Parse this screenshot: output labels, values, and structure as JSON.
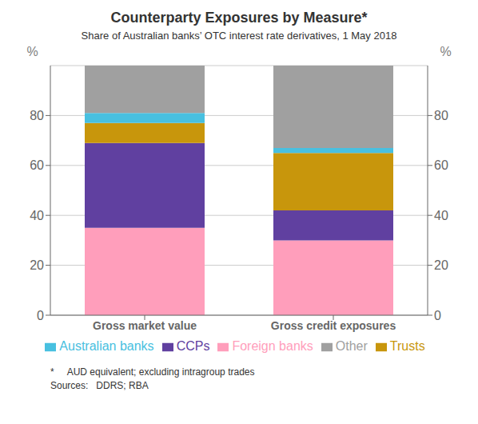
{
  "chart_data": {
    "type": "bar",
    "title": "Counterparty Exposures by Measure*",
    "subtitle": "Share of Australian banks’ OTC interest rate derivatives, 1 May 2018",
    "categories": [
      "Gross market value",
      "Gross credit exposures"
    ],
    "series": [
      {
        "name": "Foreign banks",
        "color": "#FF9EBB",
        "values": [
          35,
          30
        ]
      },
      {
        "name": "CCPs",
        "color": "#6040A0",
        "values": [
          34,
          12
        ]
      },
      {
        "name": "Trusts",
        "color": "#C8960C",
        "values": [
          8,
          23
        ]
      },
      {
        "name": "Australian banks",
        "color": "#48C0E0",
        "values": [
          4,
          2
        ]
      },
      {
        "name": "Other",
        "color": "#A0A0A0",
        "values": [
          19,
          33
        ]
      }
    ],
    "stacked": true,
    "ylabel": "%",
    "y2label": "%",
    "ylim": [
      0,
      100
    ],
    "yticks": [
      0,
      20,
      40,
      60,
      80
    ],
    "y2lim": [
      0,
      100
    ],
    "y2ticks": [
      0,
      20,
      40,
      60,
      80
    ],
    "grid": true,
    "legend": "bottom",
    "annotations": [
      "*     AUD equivalent; excluding intragroup trades",
      "Sources:   DDRS; RBA"
    ]
  }
}
